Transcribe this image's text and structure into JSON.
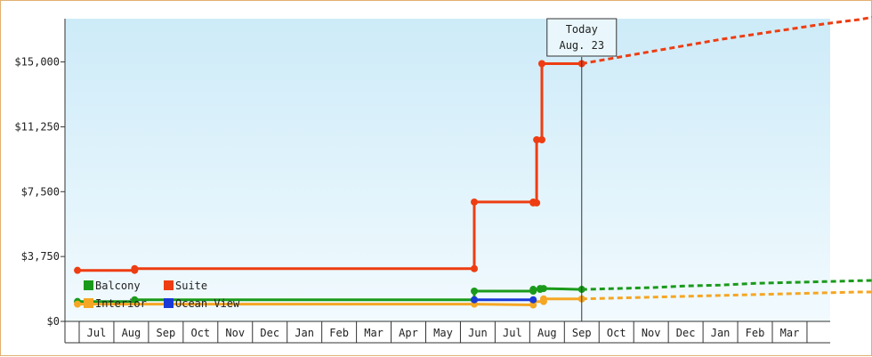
{
  "chart_data": {
    "type": "line",
    "title": "",
    "xlabel": "",
    "ylabel": "",
    "ylim": [
      0,
      17500
    ],
    "y_ticks": [
      "$0",
      "$3,750",
      "$7,500",
      "$11,250",
      "$15,000"
    ],
    "y_tick_values": [
      0,
      3750,
      7500,
      11250,
      15000
    ],
    "x_ticks": [
      "Jul",
      "Aug",
      "Sep",
      "Oct",
      "Nov",
      "Dec",
      "Jan",
      "Feb",
      "Mar",
      "Apr",
      "May",
      "Jun",
      "Jul",
      "Aug",
      "Sep",
      "Oct",
      "Nov",
      "Dec",
      "Jan",
      "Feb",
      "Mar"
    ],
    "grid": false,
    "legend_position": "bottom-left",
    "today_marker": {
      "line1": "Today",
      "line2": "Aug. 23",
      "x": 14.0
    },
    "series": [
      {
        "name": "Balcony",
        "color": "#1a9a1a",
        "points": [
          [
            -0.55,
            1150
          ],
          [
            1.1,
            1150
          ],
          [
            1.1,
            1250
          ],
          [
            10.9,
            1250
          ],
          [
            10.9,
            1750
          ],
          [
            12.6,
            1750
          ],
          [
            12.6,
            1850
          ],
          [
            12.8,
            1850
          ],
          [
            12.8,
            1900
          ],
          [
            12.9,
            1900
          ],
          [
            14.0,
            1850
          ]
        ],
        "projection": [
          [
            14.0,
            1850
          ],
          [
            15.0,
            1900
          ],
          [
            16.0,
            1950
          ],
          [
            17.0,
            2050
          ],
          [
            18.0,
            2100
          ],
          [
            19.0,
            2200
          ],
          [
            20.0,
            2250
          ],
          [
            21.0,
            2300
          ],
          [
            22.0,
            2350
          ],
          [
            23.0,
            2400
          ]
        ]
      },
      {
        "name": "Interior",
        "color": "#f5a623",
        "points": [
          [
            -0.55,
            1000
          ],
          [
            10.9,
            1000
          ],
          [
            12.6,
            950
          ],
          [
            12.6,
            1150
          ],
          [
            12.9,
            1150
          ],
          [
            12.9,
            1300
          ],
          [
            14.0,
            1300
          ]
        ],
        "projection": [
          [
            14.0,
            1300
          ],
          [
            15.0,
            1350
          ],
          [
            16.0,
            1400
          ],
          [
            17.0,
            1450
          ],
          [
            18.0,
            1500
          ],
          [
            19.0,
            1550
          ],
          [
            20.0,
            1600
          ],
          [
            21.0,
            1650
          ],
          [
            22.0,
            1700
          ],
          [
            23.0,
            1700
          ]
        ]
      },
      {
        "name": "Ocean View",
        "color": "#1a3ad6",
        "points": [
          [
            10.9,
            1250
          ],
          [
            12.6,
            1250
          ]
        ],
        "projection": []
      },
      {
        "name": "Suite",
        "color": "#ee3d12",
        "points": [
          [
            -0.55,
            2950
          ],
          [
            1.1,
            2950
          ],
          [
            1.1,
            3050
          ],
          [
            10.9,
            3050
          ],
          [
            10.9,
            6900
          ],
          [
            12.6,
            6900
          ],
          [
            12.6,
            6850
          ],
          [
            12.7,
            6850
          ],
          [
            12.7,
            10500
          ],
          [
            12.85,
            10500
          ],
          [
            12.85,
            14900
          ],
          [
            14.0,
            14900
          ]
        ],
        "projection": [
          [
            14.0,
            14900
          ],
          [
            15.0,
            15250
          ],
          [
            16.0,
            15600
          ],
          [
            17.0,
            15950
          ],
          [
            18.0,
            16300
          ],
          [
            19.0,
            16600
          ],
          [
            20.0,
            16900
          ],
          [
            21.0,
            17200
          ],
          [
            22.0,
            17450
          ],
          [
            23.0,
            17800
          ]
        ]
      }
    ]
  }
}
